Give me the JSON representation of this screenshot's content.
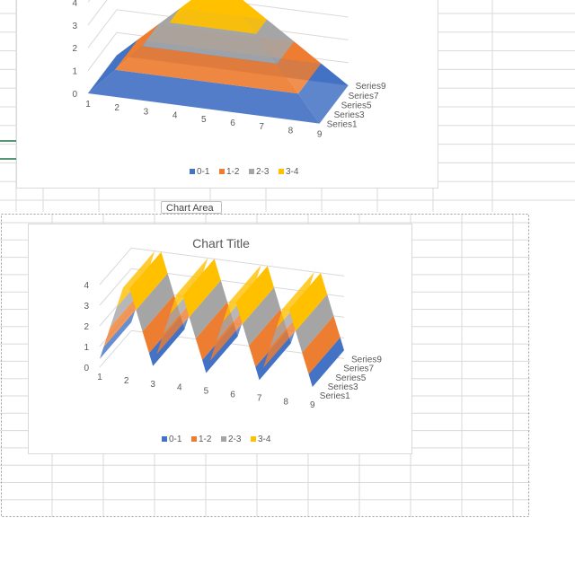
{
  "colors": {
    "band_0_1": "#4472c4",
    "band_1_2": "#ed7d31",
    "band_2_3": "#a5a5a5",
    "band_3_4": "#ffc000",
    "gridline": "#d9d9d9",
    "cell_line": "#dadada",
    "selection": "#9e9e9e",
    "cell_accent": "#217346"
  },
  "tooltip": {
    "label": "Chart Area"
  },
  "chart_data": [
    {
      "type": "surface",
      "title": "",
      "x_ticks": [
        "1",
        "2",
        "3",
        "4",
        "5",
        "6",
        "7",
        "8",
        "9"
      ],
      "z_ticks": [
        "0",
        "1",
        "2",
        "3",
        "4"
      ],
      "series_ticks": [
        "Series1",
        "Series3",
        "Series5",
        "Series7",
        "Series9"
      ],
      "legend": [
        "0-1",
        "1-2",
        "2-3",
        "3-4"
      ],
      "legend_position": "bottom",
      "grid": true,
      "zlim": [
        0,
        4
      ]
    },
    {
      "type": "surface",
      "title": "Chart Title",
      "x_ticks": [
        "1",
        "2",
        "3",
        "4",
        "5",
        "6",
        "7",
        "8",
        "9"
      ],
      "z_ticks": [
        "0",
        "1",
        "2",
        "3",
        "4"
      ],
      "series_ticks": [
        "Series1",
        "Series3",
        "Series5",
        "Series7",
        "Series9"
      ],
      "legend": [
        "0-1",
        "1-2",
        "2-3",
        "3-4"
      ],
      "legend_position": "bottom",
      "grid": true,
      "zlim": [
        0,
        4
      ]
    }
  ]
}
